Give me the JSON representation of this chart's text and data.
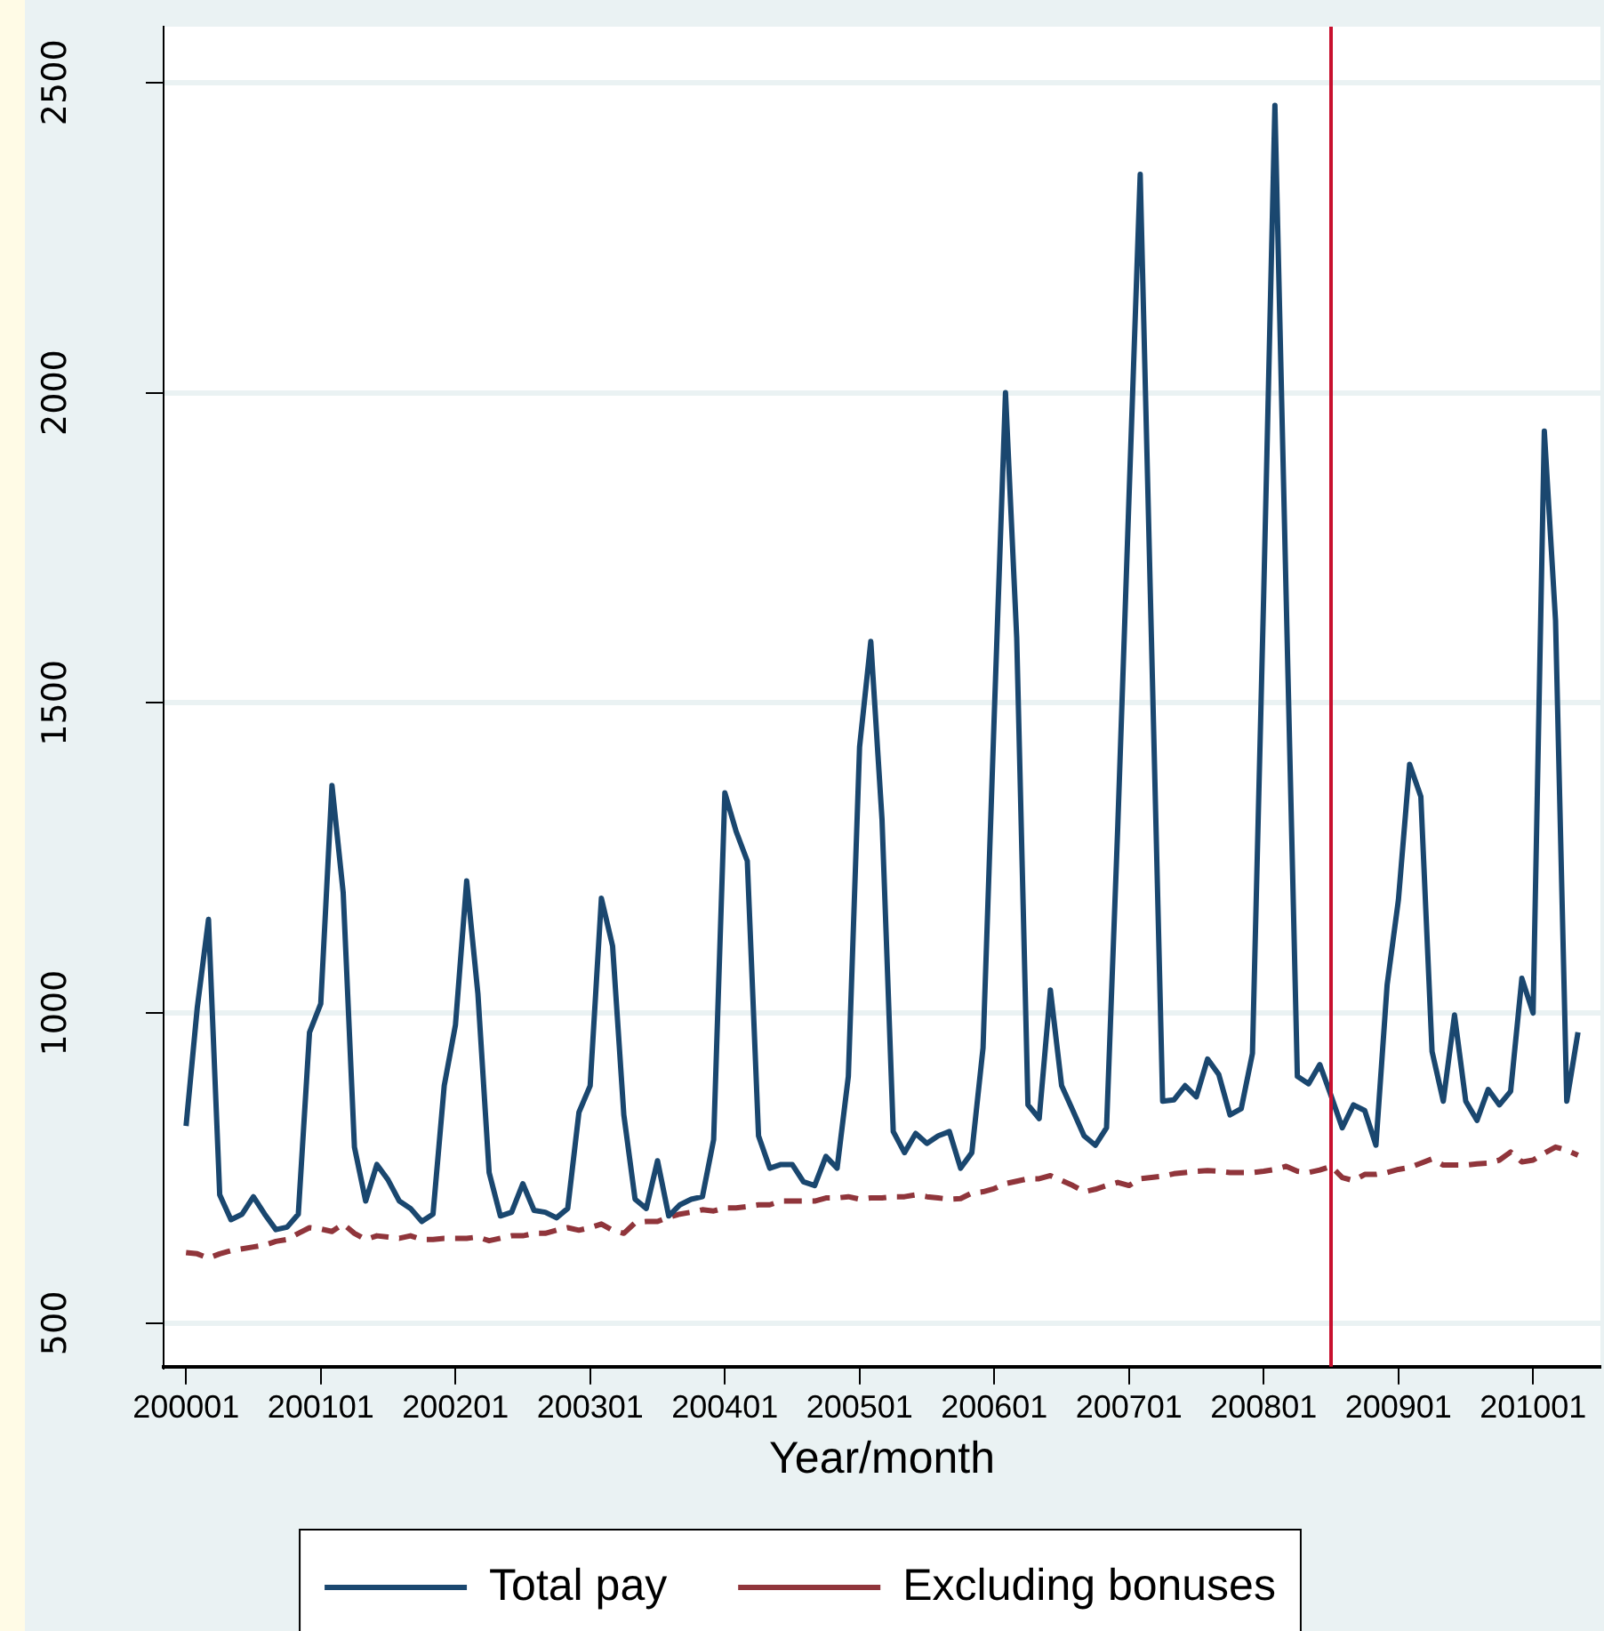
{
  "chart_data": {
    "type": "line",
    "xlabel": "Year/month",
    "x": [
      "2000-01",
      "2000-02",
      "2000-03",
      "2000-04",
      "2000-05",
      "2000-06",
      "2000-07",
      "2000-08",
      "2000-09",
      "2000-10",
      "2000-11",
      "2000-12",
      "2001-01",
      "2001-02",
      "2001-03",
      "2001-04",
      "2001-05",
      "2001-06",
      "2001-07",
      "2001-08",
      "2001-09",
      "2001-10",
      "2001-11",
      "2001-12",
      "2002-01",
      "2002-02",
      "2002-03",
      "2002-04",
      "2002-05",
      "2002-06",
      "2002-07",
      "2002-08",
      "2002-09",
      "2002-10",
      "2002-11",
      "2002-12",
      "2003-01",
      "2003-02",
      "2003-03",
      "2003-04",
      "2003-05",
      "2003-06",
      "2003-07",
      "2003-08",
      "2003-09",
      "2003-10",
      "2003-11",
      "2003-12",
      "2004-01",
      "2004-02",
      "2004-03",
      "2004-04",
      "2004-05",
      "2004-06",
      "2004-07",
      "2004-08",
      "2004-09",
      "2004-10",
      "2004-11",
      "2004-12",
      "2005-01",
      "2005-02",
      "2005-03",
      "2005-04",
      "2005-05",
      "2005-06",
      "2005-07",
      "2005-08",
      "2005-09",
      "2005-10",
      "2005-11",
      "2005-12",
      "2006-01",
      "2006-02",
      "2006-03",
      "2006-04",
      "2006-05",
      "2006-06",
      "2006-07",
      "2006-08",
      "2006-09",
      "2006-10",
      "2006-11",
      "2006-12",
      "2007-01",
      "2007-02",
      "2007-03",
      "2007-04",
      "2007-05",
      "2007-06",
      "2007-07",
      "2007-08",
      "2007-09",
      "2007-10",
      "2007-11",
      "2007-12",
      "2008-01",
      "2008-02",
      "2008-03",
      "2008-04",
      "2008-05",
      "2008-06",
      "2008-07",
      "2008-08",
      "2008-09",
      "2008-10",
      "2008-11",
      "2008-12",
      "2009-01",
      "2009-02",
      "2009-03",
      "2009-04",
      "2009-05",
      "2009-06",
      "2009-07",
      "2009-08",
      "2009-09",
      "2009-10",
      "2009-11",
      "2009-12",
      "2010-01",
      "2010-02",
      "2010-03",
      "2010-04",
      "2010-05"
    ],
    "series": [
      {
        "name": "Total pay",
        "color": "#1a476f",
        "line_style": "solid",
        "values": [
          818,
          1009,
          1151,
          707,
          667,
          676,
          704,
          676,
          651,
          655,
          676,
          969,
          1015,
          1367,
          1194,
          784,
          697,
          756,
          731,
          697,
          685,
          664,
          676,
          883,
          981,
          1213,
          1031,
          743,
          673,
          679,
          725,
          682,
          679,
          670,
          685,
          840,
          883,
          1185,
          1108,
          836,
          700,
          685,
          762,
          673,
          691,
          700,
          704,
          796,
          1355,
          1293,
          1245,
          802,
          750,
          756,
          756,
          728,
          722,
          769,
          750,
          898,
          1429,
          1599,
          1312,
          809,
          775,
          806,
          790,
          802,
          809,
          750,
          775,
          944,
          1481,
          2000,
          1605,
          852,
          830,
          1037,
          883,
          843,
          802,
          787,
          815,
          1300,
          1830,
          2352,
          1604,
          858,
          860,
          883,
          865,
          926,
          901,
          836,
          846,
          935,
          1673,
          2463,
          1673,
          898,
          886,
          917,
          867,
          815,
          852,
          843,
          787,
          1046,
          1182,
          1401,
          1349,
          938,
          858,
          997,
          858,
          827,
          877,
          852,
          874,
          1056,
          1000,
          1938,
          1633,
          858,
          969
        ]
      },
      {
        "name": "Excluding bonuses",
        "color": "#90353b",
        "line_style": "dashed",
        "values": [
          614,
          612,
          605,
          612,
          617,
          620,
          623,
          626,
          632,
          635,
          645,
          654,
          652,
          648,
          660,
          645,
          635,
          641,
          639,
          637,
          641,
          635,
          635,
          637,
          637,
          637,
          639,
          633,
          637,
          641,
          641,
          645,
          645,
          650,
          654,
          650,
          654,
          660,
          650,
          645,
          662,
          664,
          664,
          671,
          676,
          679,
          683,
          681,
          686,
          686,
          688,
          691,
          691,
          697,
          697,
          697,
          697,
          702,
          702,
          704,
          700,
          702,
          702,
          704,
          704,
          707,
          704,
          702,
          700,
          701,
          710,
          712,
          717,
          725,
          729,
          733,
          733,
          738,
          730,
          722,
          712,
          716,
          722,
          727,
          722,
          733,
          735,
          737,
          741,
          743,
          745,
          746,
          745,
          743,
          743,
          743,
          745,
          748,
          753,
          745,
          743,
          747,
          753,
          735,
          730,
          740,
          740,
          743,
          748,
          751,
          758,
          765,
          755,
          755,
          755,
          757,
          758,
          763,
          776,
          760,
          763,
          774,
          784,
          779,
          771
        ]
      }
    ],
    "xlim": [
      "1999-11",
      "2010-07"
    ],
    "xticks": [
      {
        "value": "2000-01",
        "label": "200001"
      },
      {
        "value": "2001-01",
        "label": "200101"
      },
      {
        "value": "2002-01",
        "label": "200201"
      },
      {
        "value": "2003-01",
        "label": "200301"
      },
      {
        "value": "2004-01",
        "label": "200401"
      },
      {
        "value": "2005-01",
        "label": "200501"
      },
      {
        "value": "2006-01",
        "label": "200601"
      },
      {
        "value": "2007-01",
        "label": "200701"
      },
      {
        "value": "2008-01",
        "label": "200801"
      },
      {
        "value": "2009-01",
        "label": "200901"
      },
      {
        "value": "2010-01",
        "label": "201001"
      }
    ],
    "ylim": [
      430,
      2590
    ],
    "yticks": [
      500,
      1000,
      1500,
      2000,
      2500
    ],
    "ref_lines": [
      {
        "axis": "x",
        "value": "2008-07",
        "color": "#c8102e"
      }
    ],
    "grid": "y",
    "legend": "bottom",
    "marker": "none"
  }
}
